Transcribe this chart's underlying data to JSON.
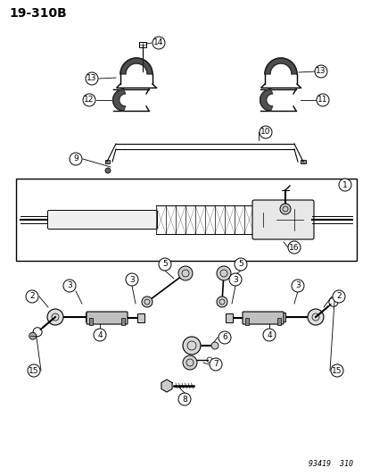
{
  "title": "19-310B",
  "footer": "93419  310",
  "bg_color": "#ffffff",
  "fig_width": 4.16,
  "fig_height": 5.33,
  "dpi": 100,
  "title_fontsize": 10,
  "label_fontsize": 6.5,
  "footer_fontsize": 6
}
